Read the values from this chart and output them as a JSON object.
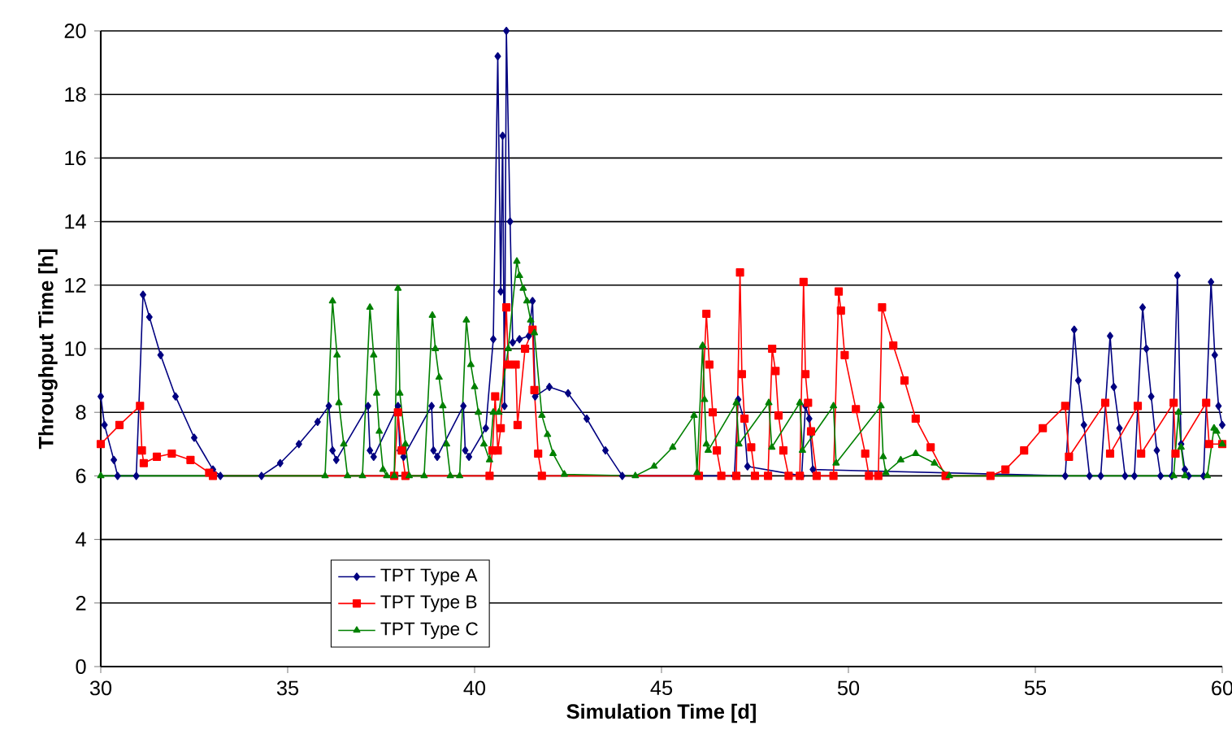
{
  "chart_data": {
    "type": "line",
    "xlabel": "Simulation Time [d]",
    "ylabel": "Throughput Time [h]",
    "xlim": [
      30,
      60
    ],
    "xticks": [
      30,
      35,
      40,
      45,
      50,
      55,
      60
    ],
    "ylim": [
      0,
      20
    ],
    "yticks": [
      0,
      2,
      4,
      6,
      8,
      10,
      12,
      14,
      16,
      18,
      20
    ],
    "grid": "y",
    "legend": "bottom left",
    "line_style": "solid",
    "series": [
      {
        "name": "TPT Type A",
        "color": "#000080",
        "marker": "diamond",
        "x": [
          30.0,
          30.1,
          30.35,
          30.45,
          30.95,
          31.13,
          31.3,
          31.6,
          32.0,
          32.5,
          33.0,
          33.2,
          34.3,
          34.8,
          35.3,
          35.8,
          36.1,
          36.2,
          36.3,
          37.15,
          37.2,
          37.3,
          37.95,
          38.0,
          38.1,
          38.85,
          38.9,
          39.0,
          39.7,
          39.75,
          39.85,
          40.3,
          40.5,
          40.62,
          40.7,
          40.75,
          40.8,
          40.85,
          40.95,
          41.02,
          41.2,
          41.45,
          41.55,
          41.62,
          42.0,
          42.5,
          43.0,
          43.5,
          43.95,
          46.95,
          47.05,
          47.2,
          47.3,
          48.75,
          48.85,
          48.95,
          49.05,
          55.8,
          56.04,
          56.15,
          56.3,
          56.45,
          56.75,
          57.0,
          57.1,
          57.25,
          57.4,
          57.65,
          57.87,
          57.97,
          58.1,
          58.25,
          58.35,
          58.65,
          58.8,
          58.9,
          59.0,
          59.1,
          59.5,
          59.7,
          59.8,
          59.9,
          60.0
        ],
        "values": [
          8.5,
          7.6,
          6.5,
          6.0,
          6.0,
          11.7,
          11.0,
          9.8,
          8.5,
          7.2,
          6.2,
          6.0,
          6.0,
          6.4,
          7.0,
          7.7,
          8.2,
          6.8,
          6.5,
          8.2,
          6.8,
          6.6,
          8.2,
          6.8,
          6.6,
          8.2,
          6.8,
          6.6,
          8.2,
          6.8,
          6.6,
          7.5,
          10.3,
          19.2,
          11.8,
          16.7,
          8.2,
          20.0,
          14.0,
          10.2,
          10.3,
          10.4,
          11.5,
          8.5,
          8.8,
          8.6,
          7.8,
          6.8,
          6.0,
          6.0,
          8.4,
          7.8,
          6.3,
          6.0,
          8.2,
          7.8,
          6.2,
          6.0,
          10.6,
          9.0,
          7.6,
          6.0,
          6.0,
          10.4,
          8.8,
          7.5,
          6.0,
          6.0,
          11.3,
          10.0,
          8.5,
          6.8,
          6.0,
          6.0,
          12.3,
          7.0,
          6.2,
          6.0,
          6.0,
          12.1,
          9.8,
          8.2,
          7.6
        ]
      },
      {
        "name": "TPT Type B",
        "color": "#ff0000",
        "marker": "square",
        "x": [
          30.0,
          30.5,
          31.05,
          31.1,
          31.15,
          31.5,
          31.9,
          32.4,
          32.9,
          33.0,
          37.85,
          37.95,
          38.05,
          38.15,
          40.4,
          40.48,
          40.55,
          40.62,
          40.7,
          40.85,
          40.9,
          41.1,
          41.15,
          41.35,
          41.55,
          41.6,
          41.7,
          41.8,
          46.0,
          46.2,
          46.28,
          46.37,
          46.48,
          46.6,
          47.0,
          47.1,
          47.15,
          47.22,
          47.4,
          47.5,
          47.85,
          47.96,
          48.05,
          48.13,
          48.26,
          48.4,
          48.7,
          48.8,
          48.85,
          48.92,
          49.0,
          49.15,
          49.6,
          49.74,
          49.8,
          49.9,
          50.2,
          50.45,
          50.55,
          50.8,
          50.9,
          51.2,
          51.5,
          51.8,
          52.2,
          52.6,
          53.8,
          54.2,
          54.7,
          55.2,
          55.8,
          55.9,
          56.87,
          57.0,
          57.74,
          57.83,
          58.7,
          58.75,
          59.57,
          59.65,
          60.0
        ],
        "values": [
          7.0,
          7.6,
          8.2,
          6.8,
          6.4,
          6.6,
          6.7,
          6.5,
          6.1,
          6.0,
          6.0,
          8.0,
          6.8,
          6.0,
          6.0,
          6.8,
          8.5,
          6.8,
          7.5,
          11.3,
          9.5,
          9.5,
          7.6,
          10.0,
          10.6,
          8.7,
          6.7,
          6.0,
          6.0,
          11.1,
          9.5,
          8.0,
          6.8,
          6.0,
          6.0,
          12.4,
          9.2,
          7.8,
          6.9,
          6.0,
          6.0,
          10.0,
          9.3,
          7.9,
          6.8,
          6.0,
          6.0,
          12.1,
          9.2,
          8.3,
          7.4,
          6.0,
          6.0,
          11.8,
          11.2,
          9.8,
          8.1,
          6.7,
          6.0,
          6.0,
          11.3,
          10.1,
          9.0,
          7.8,
          6.9,
          6.0,
          6.0,
          6.2,
          6.8,
          7.5,
          8.2,
          6.6,
          8.3,
          6.7,
          8.2,
          6.7,
          8.3,
          6.7,
          8.3,
          7.0,
          7.0
        ]
      },
      {
        "name": "TPT Type C",
        "color": "#008000",
        "marker": "triangle",
        "x": [
          30.0,
          36.0,
          36.2,
          36.32,
          36.37,
          36.5,
          36.6,
          37.0,
          37.2,
          37.3,
          37.38,
          37.45,
          37.55,
          37.65,
          37.85,
          37.95,
          38.0,
          38.15,
          38.25,
          38.65,
          38.87,
          38.95,
          39.05,
          39.15,
          39.25,
          39.35,
          39.6,
          39.78,
          39.9,
          40.0,
          40.1,
          40.25,
          40.4,
          40.5,
          40.65,
          40.9,
          41.13,
          41.2,
          41.3,
          41.4,
          41.5,
          41.6,
          41.8,
          41.95,
          42.1,
          42.4,
          44.3,
          44.8,
          45.3,
          45.87,
          45.95,
          46.1,
          46.15,
          46.2,
          46.25,
          47.0,
          47.07,
          47.87,
          47.95,
          48.7,
          48.77,
          49.6,
          49.67,
          50.87,
          50.93,
          51.0,
          51.4,
          51.8,
          52.3,
          52.7,
          58.7,
          58.83,
          58.9,
          59.0,
          59.6,
          59.78,
          59.85,
          60.0
        ],
        "values": [
          6.0,
          6.0,
          11.5,
          9.8,
          8.3,
          7.0,
          6.0,
          6.0,
          11.3,
          9.8,
          8.6,
          7.4,
          6.2,
          6.0,
          6.0,
          11.9,
          8.6,
          7.0,
          6.0,
          6.0,
          11.05,
          10.0,
          9.1,
          8.2,
          7.0,
          6.0,
          6.0,
          10.9,
          9.5,
          8.8,
          8.0,
          7.0,
          6.5,
          8.0,
          8.0,
          10.0,
          12.75,
          12.3,
          11.9,
          11.5,
          10.9,
          10.5,
          7.9,
          7.3,
          6.7,
          6.05,
          6.0,
          6.3,
          6.9,
          7.9,
          6.1,
          10.1,
          8.4,
          7.0,
          6.8,
          8.3,
          7.0,
          8.3,
          6.9,
          8.3,
          6.8,
          8.2,
          6.4,
          8.2,
          6.6,
          6.1,
          6.5,
          6.7,
          6.4,
          6.0,
          6.0,
          8.0,
          6.9,
          6.0,
          6.0,
          7.5,
          7.4,
          7.0
        ]
      }
    ]
  }
}
